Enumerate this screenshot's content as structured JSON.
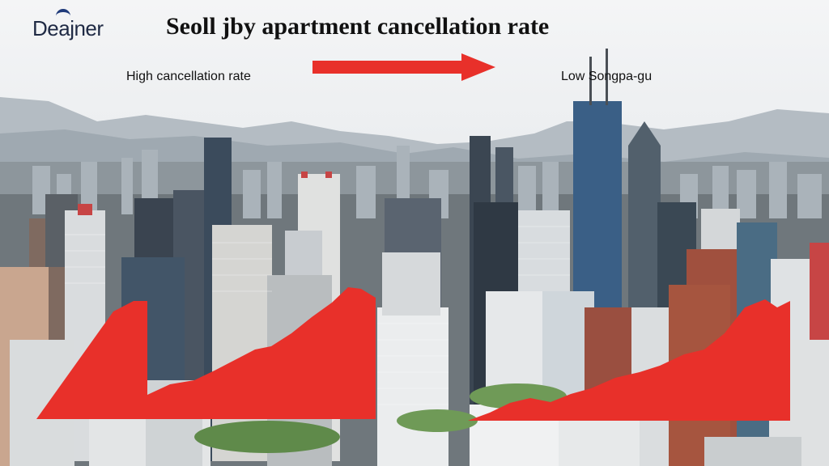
{
  "brand": {
    "logo_text": "Deajner"
  },
  "header": {
    "title": "Seoll jby apartment cancellation rate"
  },
  "labels": {
    "left": "High cancellation rate",
    "right": "Low Songpa-gu"
  },
  "colors": {
    "accent_red": "#e8302a",
    "sky": "#eef0f2",
    "mountain": "#7c8a96"
  },
  "icons": {
    "arrow": "arrow-right-icon"
  }
}
